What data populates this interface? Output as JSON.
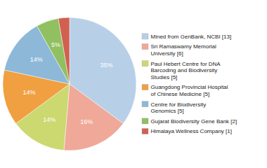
{
  "chart_data": {
    "type": "pie",
    "categories": [
      "Mined from GenBank, NCBI [13]",
      "Sri Ramaswamy Memorial\nUniversity [6]",
      "Paul Hebert Centre for DNA\nBarcoding and Biodiversity\nStudies [5]",
      "Guangdong Provincial Hospital\nof Chinese Medicine [5]",
      "Centre for Biodiversity\nGenomics [5]",
      "Gujarat Biodiversity Gene Bank [2]",
      "Himalaya Wellness Company [1]"
    ],
    "values": [
      35.14,
      16.22,
      13.51,
      13.51,
      13.51,
      5.41,
      2.7
    ],
    "value_labels": [
      "35%",
      "16%",
      "14%",
      "14%",
      "14%",
      "5%",
      null
    ],
    "colors": [
      "#b8cfe8",
      "#f0a898",
      "#ccd870",
      "#f0a040",
      "#8db8d8",
      "#90c060",
      "#d06050"
    ],
    "data_labels": true,
    "legend": "right"
  }
}
